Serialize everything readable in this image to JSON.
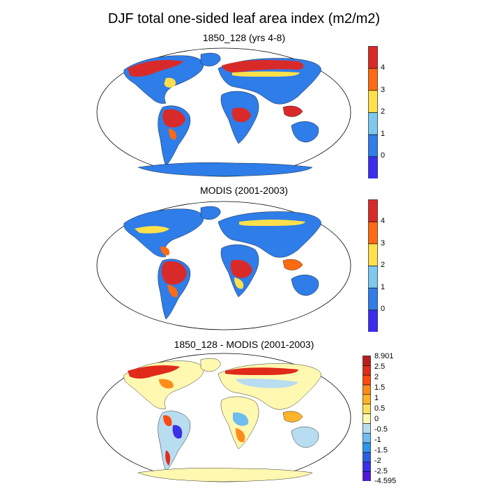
{
  "title": "DJF total one-sided leaf area index (m2/m2)",
  "panels": [
    {
      "title": "1850_128 (yrs 4-8)",
      "colorbar": {
        "labels": [
          "4",
          "3",
          "2",
          "1",
          "0"
        ],
        "colors": [
          "#d92a2a",
          "#ff6a12",
          "#ffe04a",
          "#7cc8f0",
          "#2e7de8",
          "#3b2cf0"
        ]
      }
    },
    {
      "title": "MODIS (2001-2003)",
      "colorbar": {
        "labels": [
          "4",
          "3",
          "2",
          "1",
          "0"
        ],
        "colors": [
          "#d92a2a",
          "#ff6a12",
          "#ffe04a",
          "#7cc8f0",
          "#2e7de8",
          "#3b2cf0"
        ]
      }
    },
    {
      "title": "1850_128 - MODIS (2001-2003)",
      "colorbar": {
        "labels": [
          "8.901",
          "2.5",
          "2",
          "1.5",
          "1",
          "0.5",
          "0",
          "-0.5",
          "-1",
          "-1.5",
          "-2",
          "-2.5",
          "-4.595"
        ],
        "colors": [
          "#b81e1e",
          "#e02a1a",
          "#ff4a10",
          "#ff8c1a",
          "#ffb52a",
          "#ffe060",
          "#fff8b0",
          "#b8dcf0",
          "#6fbdf0",
          "#2f95ea",
          "#2a60e0",
          "#3a30e6",
          "#5018d8"
        ]
      }
    }
  ]
}
